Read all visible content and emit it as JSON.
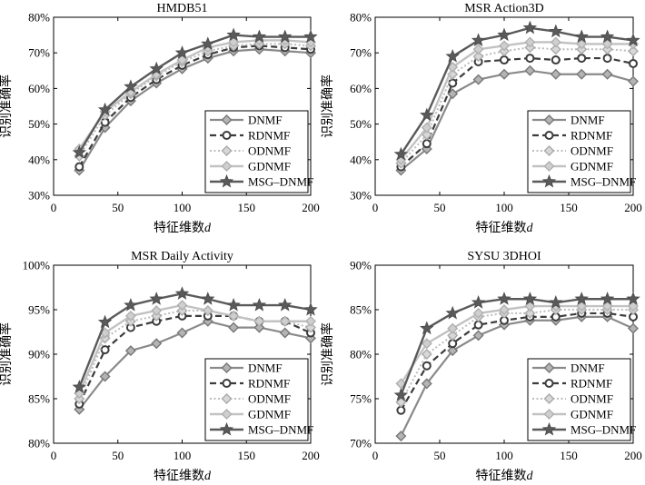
{
  "chart_data": [
    {
      "type": "line",
      "title": "HMDB51",
      "xlabel": "特征维数d",
      "ylabel": "识别准确率",
      "x": [
        20,
        40,
        60,
        80,
        100,
        120,
        140,
        160,
        180,
        200
      ],
      "xlim": [
        0,
        200
      ],
      "ylim": [
        30,
        80
      ],
      "xticks": [
        0,
        50,
        100,
        150,
        200
      ],
      "yticks": [
        30,
        40,
        50,
        60,
        70,
        80
      ],
      "ytick_labels": [
        "30%",
        "40%",
        "50%",
        "60%",
        "70%",
        "80%"
      ],
      "legend_position": "bottom-right",
      "series": [
        {
          "name": "DNMF",
          "values": [
            37,
            49,
            56.5,
            61.5,
            65.5,
            68.5,
            70.5,
            71,
            70.5,
            70
          ]
        },
        {
          "name": "RDNMF",
          "values": [
            38,
            50.5,
            57.5,
            62.5,
            66.5,
            69.5,
            71.5,
            72,
            71.5,
            71
          ]
        },
        {
          "name": "ODNMF",
          "values": [
            41,
            52.5,
            58.5,
            63.5,
            67.5,
            70.5,
            72,
            72.5,
            72.5,
            72
          ]
        },
        {
          "name": "GDNMF",
          "values": [
            43,
            53.5,
            59,
            64,
            68,
            71.5,
            73,
            73.5,
            73.5,
            73
          ]
        },
        {
          "name": "MSG–DNMF",
          "values": [
            42,
            54,
            60.5,
            65.5,
            70,
            72.5,
            75,
            74.5,
            74.5,
            74.5
          ]
        }
      ]
    },
    {
      "type": "line",
      "title": "MSR Action3D",
      "xlabel": "特征维数d",
      "ylabel": "识别准确率",
      "x": [
        20,
        40,
        60,
        80,
        100,
        120,
        140,
        160,
        180,
        200
      ],
      "xlim": [
        0,
        200
      ],
      "ylim": [
        30,
        80
      ],
      "xticks": [
        0,
        50,
        100,
        150,
        200
      ],
      "yticks": [
        30,
        40,
        50,
        60,
        70,
        80
      ],
      "ytick_labels": [
        "30%",
        "40%",
        "50%",
        "60%",
        "70%",
        "80%"
      ],
      "legend_position": "bottom-right",
      "series": [
        {
          "name": "DNMF",
          "values": [
            37,
            43,
            58.5,
            62.5,
            64,
            65,
            64,
            64,
            64,
            62
          ]
        },
        {
          "name": "RDNMF",
          "values": [
            38,
            44.5,
            61.5,
            67.5,
            68,
            68.5,
            68,
            68.5,
            68.5,
            67
          ]
        },
        {
          "name": "ODNMF",
          "values": [
            39,
            47,
            64,
            69,
            70.5,
            71.5,
            71,
            71,
            71,
            70.5
          ]
        },
        {
          "name": "GDNMF",
          "values": [
            40,
            49,
            66,
            71,
            72,
            73,
            73,
            72.5,
            72.5,
            72.5
          ]
        },
        {
          "name": "MSG–DNMF",
          "values": [
            41.5,
            52.5,
            69,
            73.5,
            75,
            77,
            76,
            74.5,
            74.5,
            73.5
          ]
        }
      ]
    },
    {
      "type": "line",
      "title": "MSR Daily Activity",
      "xlabel": "特征维数d",
      "ylabel": "识别准确率",
      "x": [
        20,
        40,
        60,
        80,
        100,
        120,
        140,
        160,
        180,
        200
      ],
      "xlim": [
        0,
        200
      ],
      "ylim": [
        80,
        100
      ],
      "xticks": [
        0,
        50,
        100,
        150,
        200
      ],
      "yticks": [
        80,
        85,
        90,
        95,
        100
      ],
      "ytick_labels": [
        "80%",
        "85%",
        "90%",
        "95%",
        "100%"
      ],
      "legend_position": "bottom-right",
      "series": [
        {
          "name": "DNMF",
          "values": [
            83.8,
            87.5,
            90.4,
            91.2,
            92.4,
            93.7,
            93,
            93,
            92.4,
            91.8
          ]
        },
        {
          "name": "RDNMF",
          "values": [
            84.4,
            90.5,
            93,
            93.7,
            94.3,
            94.3,
            94.3,
            93.7,
            93.7,
            92.4
          ]
        },
        {
          "name": "ODNMF",
          "values": [
            85,
            91.8,
            93.7,
            94.3,
            94.9,
            94.9,
            94.3,
            93.7,
            93.7,
            93
          ]
        },
        {
          "name": "GDNMF",
          "values": [
            85.6,
            92.4,
            94.3,
            94.9,
            95.5,
            94.9,
            94.3,
            93.7,
            93.7,
            93.7
          ]
        },
        {
          "name": "MSG–DNMF",
          "values": [
            86.3,
            93.6,
            95.5,
            96.2,
            96.8,
            96.2,
            95.5,
            95.5,
            95.5,
            95
          ]
        }
      ]
    },
    {
      "type": "line",
      "title": "SYSU 3DHOI",
      "xlabel": "特征维数d",
      "ylabel": "识别准确率",
      "x": [
        20,
        40,
        60,
        80,
        100,
        120,
        140,
        160,
        180,
        200
      ],
      "xlim": [
        0,
        200
      ],
      "ylim": [
        70,
        90
      ],
      "xticks": [
        0,
        50,
        100,
        150,
        200
      ],
      "yticks": [
        70,
        75,
        80,
        85,
        90
      ],
      "ytick_labels": [
        "70%",
        "75%",
        "80%",
        "85%",
        "90%"
      ],
      "legend_position": "bottom-right",
      "series": [
        {
          "name": "DNMF",
          "values": [
            70.8,
            76.7,
            80.4,
            82.1,
            83.3,
            83.8,
            83.8,
            84.2,
            84.2,
            82.9
          ]
        },
        {
          "name": "RDNMF",
          "values": [
            73.7,
            78.7,
            81.2,
            83.3,
            83.8,
            84.2,
            84.2,
            84.6,
            84.6,
            84.2
          ]
        },
        {
          "name": "ODNMF",
          "values": [
            74.6,
            80,
            82.1,
            84.2,
            84.6,
            84.6,
            85,
            85,
            85,
            85
          ]
        },
        {
          "name": "GDNMF",
          "values": [
            76.7,
            81.2,
            82.9,
            84.6,
            85,
            85.4,
            85.4,
            85.4,
            85.4,
            85.4
          ]
        },
        {
          "name": "MSG–DNMF",
          "values": [
            75.4,
            82.9,
            84.6,
            85.8,
            86.2,
            86.2,
            85.8,
            86.2,
            86.2,
            86.2
          ]
        }
      ]
    }
  ]
}
